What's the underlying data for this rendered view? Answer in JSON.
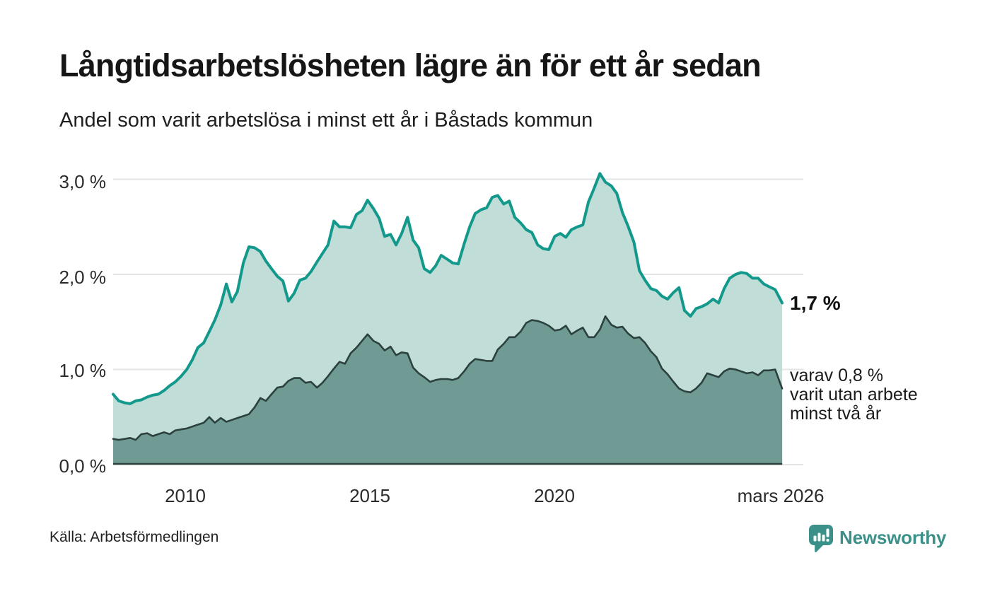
{
  "header": {
    "title": "Långtidsarbetslösheten lägre än för ett år sedan",
    "subtitle": "Andel som varit arbetslösa i minst ett år i Båstads kommun"
  },
  "chart_data": {
    "type": "area",
    "title": "Långtidsarbetslösheten lägre än för ett år sedan",
    "subtitle": "Andel som varit arbetslösa i minst ett år i Båstads kommun",
    "unit": "%",
    "grid": "horizontal",
    "ylim": [
      0,
      3.2
    ],
    "x_range_years": [
      2008.05,
      2026.17
    ],
    "y_ticks": [
      "3,0 %",
      "2,0 %",
      "1,0 %",
      "0,0 %"
    ],
    "y_tick_values": [
      3,
      2,
      1,
      0
    ],
    "x_tick_labels": [
      "2010",
      "2015",
      "2020",
      "mars 2026"
    ],
    "x_tick_years": [
      2010,
      2015,
      2020,
      2026.1
    ],
    "x": [
      2008.05,
      2008.2,
      2008.36,
      2008.51,
      2008.66,
      2008.81,
      2008.97,
      2009.12,
      2009.27,
      2009.43,
      2009.58,
      2009.73,
      2009.89,
      2010.04,
      2010.19,
      2010.34,
      2010.5,
      2010.65,
      2010.8,
      2010.96,
      2011.11,
      2011.26,
      2011.41,
      2011.57,
      2011.72,
      2011.87,
      2012.03,
      2012.18,
      2012.33,
      2012.49,
      2012.64,
      2012.79,
      2012.94,
      2013.1,
      2013.25,
      2013.4,
      2013.56,
      2013.71,
      2013.86,
      2014.02,
      2014.17,
      2014.32,
      2014.47,
      2014.63,
      2014.78,
      2014.93,
      2015.09,
      2015.24,
      2015.39,
      2015.55,
      2015.7,
      2015.85,
      2016.01,
      2016.16,
      2016.31,
      2016.46,
      2016.62,
      2016.77,
      2016.92,
      2017.08,
      2017.23,
      2017.38,
      2017.54,
      2017.69,
      2017.84,
      2018.0,
      2018.15,
      2018.3,
      2018.45,
      2018.61,
      2018.76,
      2018.91,
      2019.07,
      2019.22,
      2019.37,
      2019.53,
      2019.68,
      2019.83,
      2019.99,
      2020.14,
      2020.29,
      2020.44,
      2020.6,
      2020.75,
      2020.9,
      2021.06,
      2021.21,
      2021.36,
      2021.52,
      2021.67,
      2021.82,
      2021.97,
      2022.13,
      2022.28,
      2022.43,
      2022.59,
      2022.74,
      2022.89,
      2023.04,
      2023.2,
      2023.35,
      2023.5,
      2023.66,
      2023.81,
      2023.96,
      2024.11,
      2024.27,
      2024.42,
      2024.57,
      2024.72,
      2024.88,
      2025.03,
      2025.18,
      2025.34,
      2025.49,
      2025.64,
      2025.79,
      2025.95,
      2026.14
    ],
    "series": [
      {
        "name": "Andel som varit arbetslösa minst ett år",
        "line_color": "#13998c",
        "fill_color": "#c0ddd7",
        "values": [
          0.74,
          0.67,
          0.65,
          0.64,
          0.67,
          0.68,
          0.71,
          0.73,
          0.74,
          0.78,
          0.83,
          0.87,
          0.93,
          1.0,
          1.1,
          1.23,
          1.28,
          1.4,
          1.52,
          1.68,
          1.9,
          1.71,
          1.82,
          2.12,
          2.29,
          2.28,
          2.24,
          2.14,
          2.06,
          1.98,
          1.93,
          1.72,
          1.8,
          1.94,
          1.96,
          2.03,
          2.13,
          2.22,
          2.31,
          2.56,
          2.5,
          2.5,
          2.49,
          2.63,
          2.67,
          2.78,
          2.69,
          2.59,
          2.4,
          2.42,
          2.31,
          2.43,
          2.6,
          2.36,
          2.28,
          2.06,
          2.02,
          2.09,
          2.2,
          2.16,
          2.12,
          2.11,
          2.32,
          2.5,
          2.64,
          2.68,
          2.7,
          2.81,
          2.83,
          2.74,
          2.77,
          2.6,
          2.54,
          2.47,
          2.44,
          2.31,
          2.27,
          2.26,
          2.4,
          2.43,
          2.39,
          2.47,
          2.5,
          2.52,
          2.76,
          2.91,
          3.06,
          2.97,
          2.93,
          2.85,
          2.65,
          2.51,
          2.34,
          2.04,
          1.94,
          1.85,
          1.83,
          1.77,
          1.74,
          1.81,
          1.86,
          1.62,
          1.56,
          1.64,
          1.66,
          1.69,
          1.74,
          1.7,
          1.85,
          1.96,
          2.0,
          2.02,
          2.01,
          1.96,
          1.96,
          1.9,
          1.87,
          1.84,
          1.7
        ]
      },
      {
        "name": "varav utan arbete minst två år",
        "line_color": "#2c413e",
        "fill_color": "#6f9b94",
        "values": [
          0.27,
          0.26,
          0.27,
          0.28,
          0.26,
          0.32,
          0.33,
          0.3,
          0.32,
          0.34,
          0.32,
          0.36,
          0.37,
          0.38,
          0.4,
          0.42,
          0.44,
          0.5,
          0.44,
          0.49,
          0.45,
          0.47,
          0.49,
          0.51,
          0.53,
          0.6,
          0.7,
          0.67,
          0.74,
          0.81,
          0.82,
          0.88,
          0.91,
          0.91,
          0.86,
          0.87,
          0.81,
          0.86,
          0.93,
          1.01,
          1.08,
          1.06,
          1.17,
          1.23,
          1.3,
          1.37,
          1.3,
          1.27,
          1.2,
          1.24,
          1.15,
          1.18,
          1.17,
          1.02,
          0.96,
          0.92,
          0.87,
          0.89,
          0.9,
          0.9,
          0.89,
          0.91,
          0.98,
          1.06,
          1.11,
          1.1,
          1.09,
          1.09,
          1.21,
          1.27,
          1.34,
          1.34,
          1.4,
          1.49,
          1.52,
          1.51,
          1.49,
          1.46,
          1.41,
          1.42,
          1.46,
          1.37,
          1.41,
          1.44,
          1.34,
          1.34,
          1.42,
          1.56,
          1.47,
          1.44,
          1.45,
          1.38,
          1.33,
          1.34,
          1.28,
          1.19,
          1.13,
          1.01,
          0.95,
          0.87,
          0.8,
          0.77,
          0.76,
          0.8,
          0.86,
          0.96,
          0.94,
          0.92,
          0.98,
          1.01,
          1.0,
          0.98,
          0.96,
          0.97,
          0.94,
          0.99,
          0.99,
          1.0,
          0.8
        ]
      }
    ],
    "end_labels": {
      "total": "1,7 %",
      "two_line1": "varav 0,8 %",
      "two_line2": "varit utan arbete",
      "two_line3": "minst två år"
    },
    "grid_color": "#e4e4e4",
    "latest_values": {
      "at_least_one_year": 1.7,
      "at_least_two_years": 0.8
    }
  },
  "footer": {
    "source": "Källa: Arbetsförmedlingen",
    "brand": "Newsworthy"
  },
  "colors": {
    "accent_teal": "#13998c",
    "light_fill": "#c0ddd7",
    "dark_fill": "#6f9b94",
    "dark_line": "#2c413e",
    "brand_teal": "#3b918a"
  }
}
